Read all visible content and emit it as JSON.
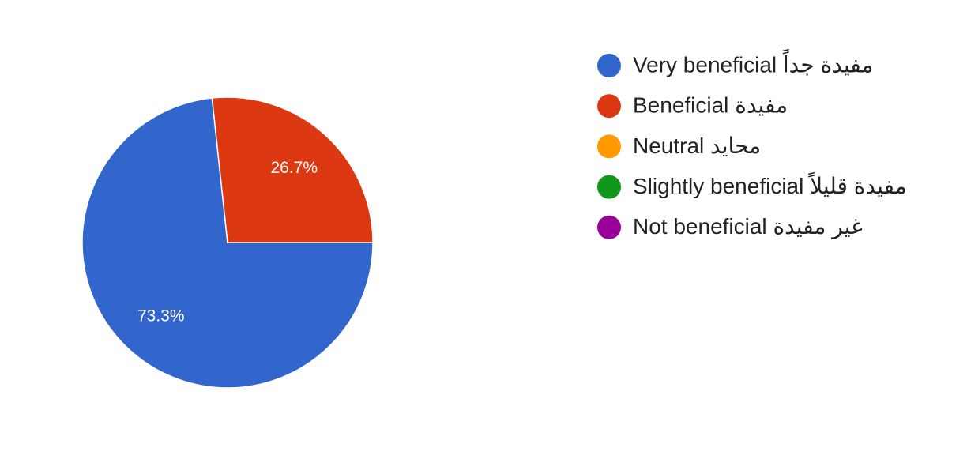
{
  "chart_data": {
    "type": "pie",
    "categories": [
      "Very beneficial مفيدة جداً",
      "Beneficial مفيدة",
      "Neutral محايد",
      "Slightly beneficial مفيدة قليلاً",
      "Not beneficial غير مفيدة"
    ],
    "values": [
      73.3,
      26.7,
      0,
      0,
      0
    ],
    "value_labels": [
      "73.3%",
      "26.7%",
      null,
      null,
      null
    ],
    "colors": [
      "#3366cc",
      "#dc3912",
      "#ff9900",
      "#109618",
      "#990099"
    ],
    "legend": "right"
  }
}
